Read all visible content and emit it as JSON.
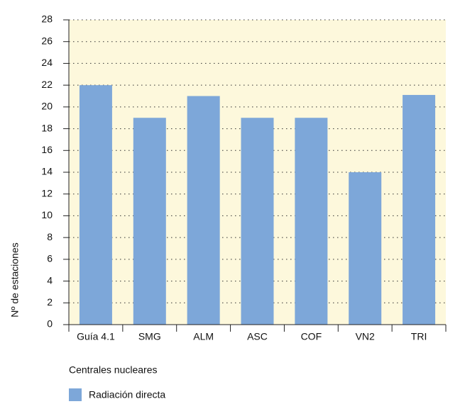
{
  "chart_data": {
    "type": "bar",
    "categories": [
      "Guía 4.1",
      "SMG",
      "ALM",
      "ASC",
      "COF",
      "VN2",
      "TRI"
    ],
    "series": [
      {
        "name": "Radiación directa",
        "color": "#7da7d9",
        "values": [
          22,
          19,
          21,
          19,
          19,
          14,
          21.1
        ]
      }
    ],
    "ylabel": "Nº de estaciones",
    "xlabel": "Centrales nucleares",
    "ylim": [
      0,
      28
    ],
    "yticks": [
      0,
      2,
      4,
      6,
      8,
      10,
      12,
      14,
      16,
      18,
      20,
      22,
      24,
      26,
      28
    ],
    "grid": true,
    "legend": "bottom",
    "background": "#fdf8dc"
  }
}
